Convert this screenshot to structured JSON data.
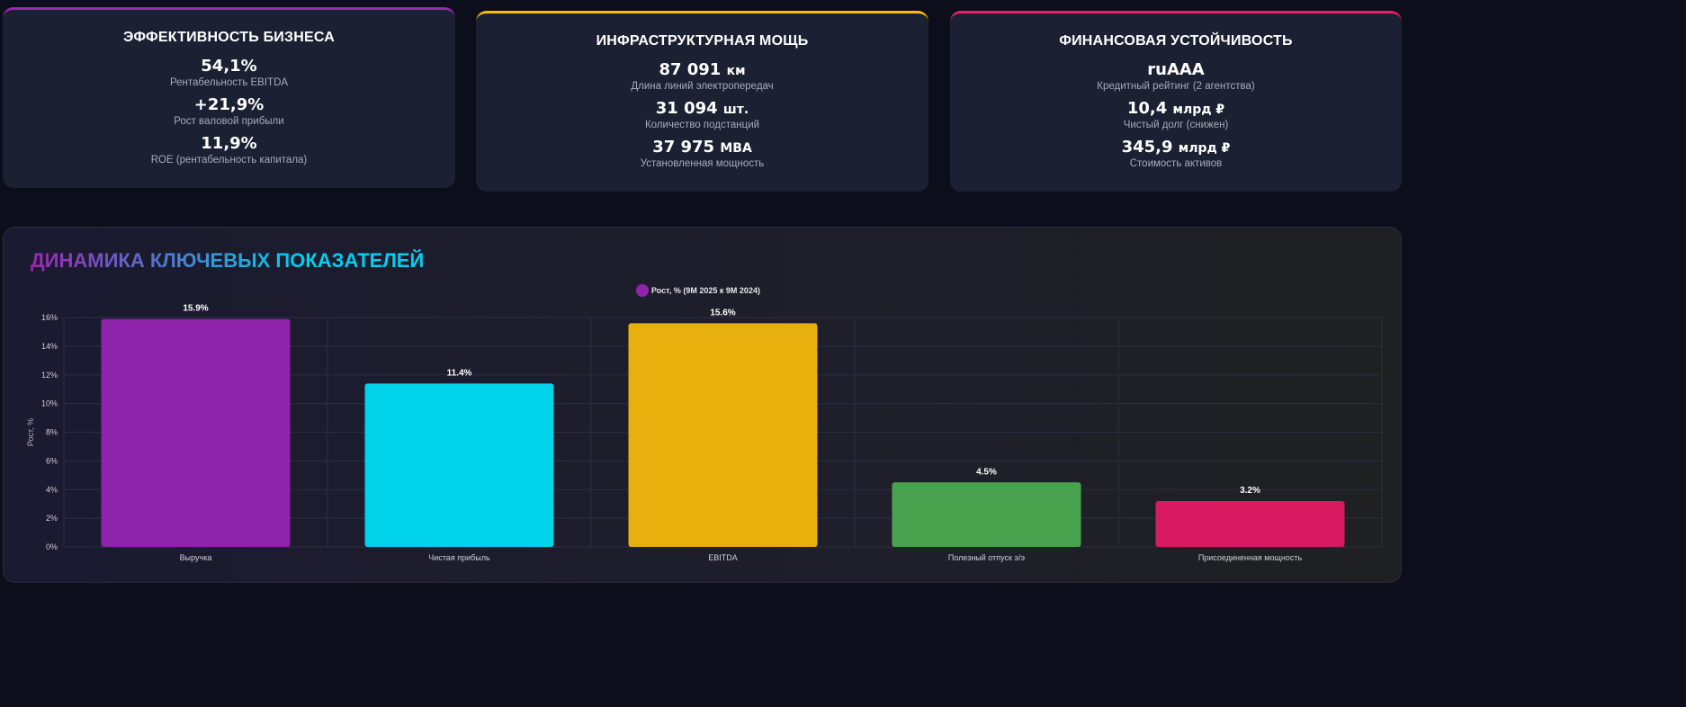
{
  "cards": [
    {
      "title": "ЭФФЕКТИВНОСТЬ БИЗНЕСА",
      "accent": "#9c27b0",
      "items": [
        {
          "value": "54,1%",
          "unit": "",
          "label": "Рентабельность EBITDA"
        },
        {
          "value": "+21,9%",
          "unit": "",
          "label": "Рост валовой прибыли"
        },
        {
          "value": "11,9%",
          "unit": "",
          "label": "ROE (рентабельность капитала)"
        }
      ]
    },
    {
      "title": "ИНФРАСТРУКТУРНАЯ МОЩЬ",
      "accent": "#f5c000",
      "items": [
        {
          "value": "87 091",
          "unit": "км",
          "label": "Длина линий электропередач"
        },
        {
          "value": "31 094",
          "unit": "шт.",
          "label": "Количество подстанций"
        },
        {
          "value": "37 975",
          "unit": "МВА",
          "label": "Установленная мощность"
        }
      ]
    },
    {
      "title": "ФИНАНСОВАЯ УСТОЙЧИВОСТЬ",
      "accent": "#e91e63",
      "items": [
        {
          "value": "ruAAA",
          "unit": "",
          "label": "Кредитный рейтинг (2 агентства)"
        },
        {
          "value": "10,4",
          "unit": "млрд ₽",
          "label": "Чистый долг (снижен)"
        },
        {
          "value": "345,9",
          "unit": "млрд ₽",
          "label": "Стоимость активов"
        }
      ]
    }
  ],
  "panel": {
    "title": "ДИНАМИКА КЛЮЧЕВЫХ ПОКАЗАТЕЛЕЙ"
  },
  "chart_data": {
    "type": "bar",
    "categories": [
      "Выручка",
      "Чистая прибыль",
      "EBITDA",
      "Полезный отпуск э/э",
      "Присоединенная мощность"
    ],
    "series": [
      {
        "name": "Рост, % (9М 2025 к 9М 2024)",
        "values": [
          15.9,
          11.4,
          15.6,
          4.5,
          3.2
        ]
      }
    ],
    "colors": [
      "#8e24aa",
      "#00d2ea",
      "#e8b00c",
      "#49a34e",
      "#d81b60"
    ],
    "data_labels": [
      "15.9%",
      "11.4%",
      "15.6%",
      "4.5%",
      "3.2%"
    ],
    "ylabel": "Рост, %",
    "xlabel": "",
    "ylim": [
      0,
      16
    ],
    "yticks": [
      "0%",
      "2%",
      "4%",
      "6%",
      "8%",
      "10%",
      "12%",
      "14%",
      "16%"
    ],
    "legend": "top-center",
    "grid": true
  }
}
